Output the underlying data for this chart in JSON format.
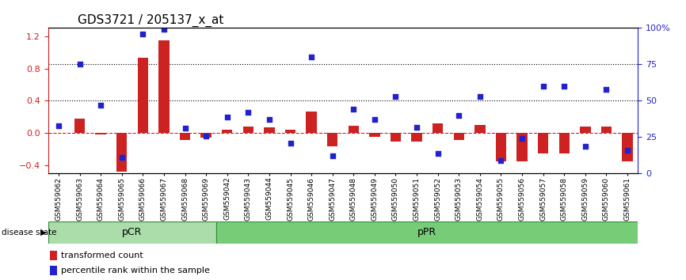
{
  "title": "GDS3721 / 205137_x_at",
  "samples": [
    "GSM559062",
    "GSM559063",
    "GSM559064",
    "GSM559065",
    "GSM559066",
    "GSM559067",
    "GSM559068",
    "GSM559069",
    "GSM559042",
    "GSM559043",
    "GSM559044",
    "GSM559045",
    "GSM559046",
    "GSM559047",
    "GSM559048",
    "GSM559049",
    "GSM559050",
    "GSM559051",
    "GSM559052",
    "GSM559053",
    "GSM559054",
    "GSM559055",
    "GSM559056",
    "GSM559057",
    "GSM559058",
    "GSM559059",
    "GSM559060",
    "GSM559061"
  ],
  "red_values": [
    0.0,
    0.18,
    -0.02,
    -0.48,
    0.93,
    1.15,
    -0.08,
    -0.06,
    0.04,
    0.08,
    0.07,
    0.04,
    0.27,
    -0.16,
    0.09,
    -0.05,
    -0.1,
    -0.1,
    0.12,
    -0.08,
    0.1,
    -0.35,
    -0.35,
    -0.25,
    -0.25,
    0.08,
    0.08,
    -0.35
  ],
  "blue_values_pct": [
    33,
    75,
    47,
    11,
    96,
    99,
    31,
    26,
    39,
    42,
    37,
    21,
    80,
    12,
    44,
    37,
    53,
    32,
    14,
    40,
    53,
    9,
    24,
    60,
    60,
    19,
    58,
    16
  ],
  "group_boundaries": [
    0,
    8,
    28
  ],
  "group_colors": [
    "#90ee90",
    "#66cc66"
  ],
  "disease_state_label": "disease state",
  "ylim_left": [
    -0.5,
    1.3
  ],
  "ylim_right": [
    0,
    100
  ],
  "yticks_left": [
    -0.4,
    0.0,
    0.4,
    0.8,
    1.2
  ],
  "yticks_right": [
    0,
    25,
    50,
    75,
    100
  ],
  "dotted_lines_pct": [
    50,
    75
  ],
  "bar_color": "#cc2222",
  "dot_color": "#2222cc",
  "zero_line_color": "#cc2222",
  "title_fontsize": 11,
  "legend_labels": [
    "transformed count",
    "percentile rank within the sample"
  ]
}
